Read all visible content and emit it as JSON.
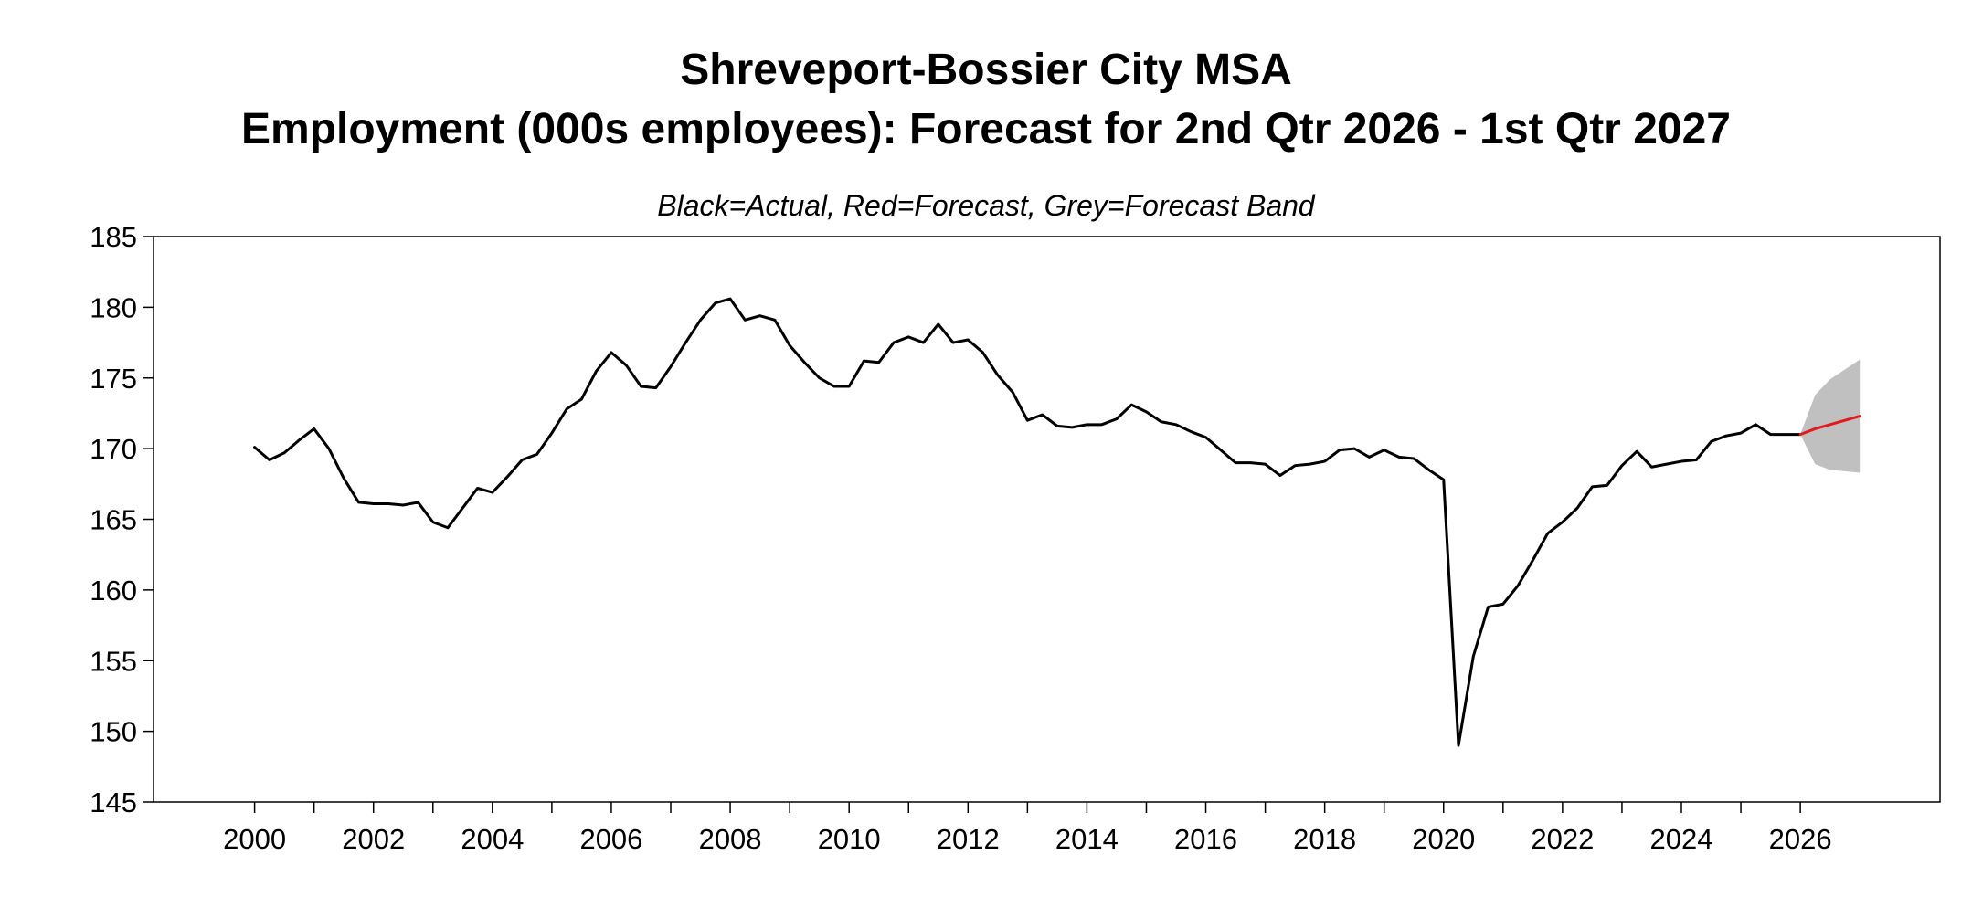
{
  "chart_data": {
    "type": "line",
    "title_line1": "Shreveport-Bossier City MSA",
    "title_line2": "Employment (000s employees): Forecast for 2nd Qtr 2026 - 1st Qtr 2027",
    "subtitle": "Black=Actual, Red=Forecast, Grey=Forecast Band",
    "xlabel": "",
    "ylabel": "",
    "xlim": [
      1998.3,
      2028.35
    ],
    "ylim": [
      145,
      185
    ],
    "y_ticks": [
      185,
      180,
      175,
      170,
      165,
      160,
      155,
      150,
      145
    ],
    "x_ticks_labeled": [
      "2000",
      "2002",
      "2004",
      "2006",
      "2008",
      "2010",
      "2012",
      "2014",
      "2016",
      "2018",
      "2020",
      "2022",
      "2024",
      "2026"
    ],
    "x_ticks_minor": [
      2001,
      2003,
      2005,
      2007,
      2009,
      2011,
      2013,
      2015,
      2017,
      2019,
      2021,
      2023,
      2025
    ],
    "grid": false,
    "series": [
      {
        "name": "Actual",
        "color": "#000000",
        "x": [
          2000.0,
          2000.25,
          2000.5,
          2000.75,
          2001.0,
          2001.25,
          2001.5,
          2001.75,
          2002.0,
          2002.25,
          2002.5,
          2002.75,
          2003.0,
          2003.25,
          2003.5,
          2003.75,
          2004.0,
          2004.25,
          2004.5,
          2004.75,
          2005.0,
          2005.25,
          2005.5,
          2005.75,
          2006.0,
          2006.25,
          2006.5,
          2006.75,
          2007.0,
          2007.25,
          2007.5,
          2007.75,
          2008.0,
          2008.25,
          2008.5,
          2008.75,
          2009.0,
          2009.25,
          2009.5,
          2009.75,
          2010.0,
          2010.25,
          2010.5,
          2010.75,
          2011.0,
          2011.25,
          2011.5,
          2011.75,
          2012.0,
          2012.25,
          2012.5,
          2012.75,
          2013.0,
          2013.25,
          2013.5,
          2013.75,
          2014.0,
          2014.25,
          2014.5,
          2014.75,
          2015.0,
          2015.25,
          2015.5,
          2015.75,
          2016.0,
          2016.25,
          2016.5,
          2016.75,
          2017.0,
          2017.25,
          2017.5,
          2017.75,
          2018.0,
          2018.25,
          2018.5,
          2018.75,
          2019.0,
          2019.25,
          2019.5,
          2019.75,
          2020.0,
          2020.25,
          2020.5,
          2020.75,
          2021.0,
          2021.25,
          2021.5,
          2021.75,
          2022.0,
          2022.25,
          2022.5,
          2022.75,
          2023.0,
          2023.25,
          2023.5,
          2023.75,
          2024.0,
          2024.25,
          2024.5,
          2024.75,
          2025.0,
          2025.25,
          2025.5,
          2025.75,
          2026.0
        ],
        "values": [
          170.1,
          169.2,
          169.7,
          170.6,
          171.4,
          170.0,
          167.9,
          166.2,
          166.1,
          166.1,
          166.0,
          166.2,
          164.8,
          164.4,
          165.8,
          167.2,
          166.9,
          168.0,
          169.2,
          169.6,
          171.1,
          172.8,
          173.5,
          175.5,
          176.8,
          175.9,
          174.4,
          174.3,
          175.8,
          177.5,
          179.1,
          180.3,
          180.6,
          179.1,
          179.4,
          179.1,
          177.3,
          176.1,
          175.0,
          174.4,
          174.4,
          176.2,
          176.1,
          177.5,
          177.9,
          177.5,
          178.8,
          177.5,
          177.7,
          176.8,
          175.2,
          174.0,
          172.0,
          172.4,
          171.6,
          171.5,
          171.7,
          171.7,
          172.1,
          173.1,
          172.6,
          171.9,
          171.7,
          171.2,
          170.8,
          169.9,
          169.0,
          169.0,
          168.9,
          168.1,
          168.8,
          168.9,
          169.1,
          169.9,
          170.0,
          169.4,
          169.9,
          169.4,
          169.3,
          168.5,
          167.8,
          149.0,
          155.3,
          158.8,
          159.0,
          160.3,
          162.1,
          164.0,
          164.8,
          165.8,
          167.3,
          167.4,
          168.8,
          169.8,
          168.7,
          168.9,
          169.1,
          169.2,
          170.5,
          170.9,
          171.1,
          171.7,
          171.0,
          171.0,
          171.0
        ]
      },
      {
        "name": "Forecast",
        "color": "#e31a1c",
        "x": [
          2026.0,
          2026.25,
          2026.5,
          2026.75,
          2027.0
        ],
        "values": [
          171.0,
          171.4,
          171.7,
          172.0,
          172.3
        ]
      }
    ],
    "band": {
      "name": "Forecast Band",
      "color": "#c0c0c0",
      "x": [
        2026.0,
        2026.25,
        2026.5,
        2026.75,
        2027.0
      ],
      "upper": [
        171.0,
        173.8,
        174.9,
        175.6,
        176.3
      ],
      "lower": [
        171.0,
        168.9,
        168.5,
        168.4,
        168.3
      ]
    }
  }
}
